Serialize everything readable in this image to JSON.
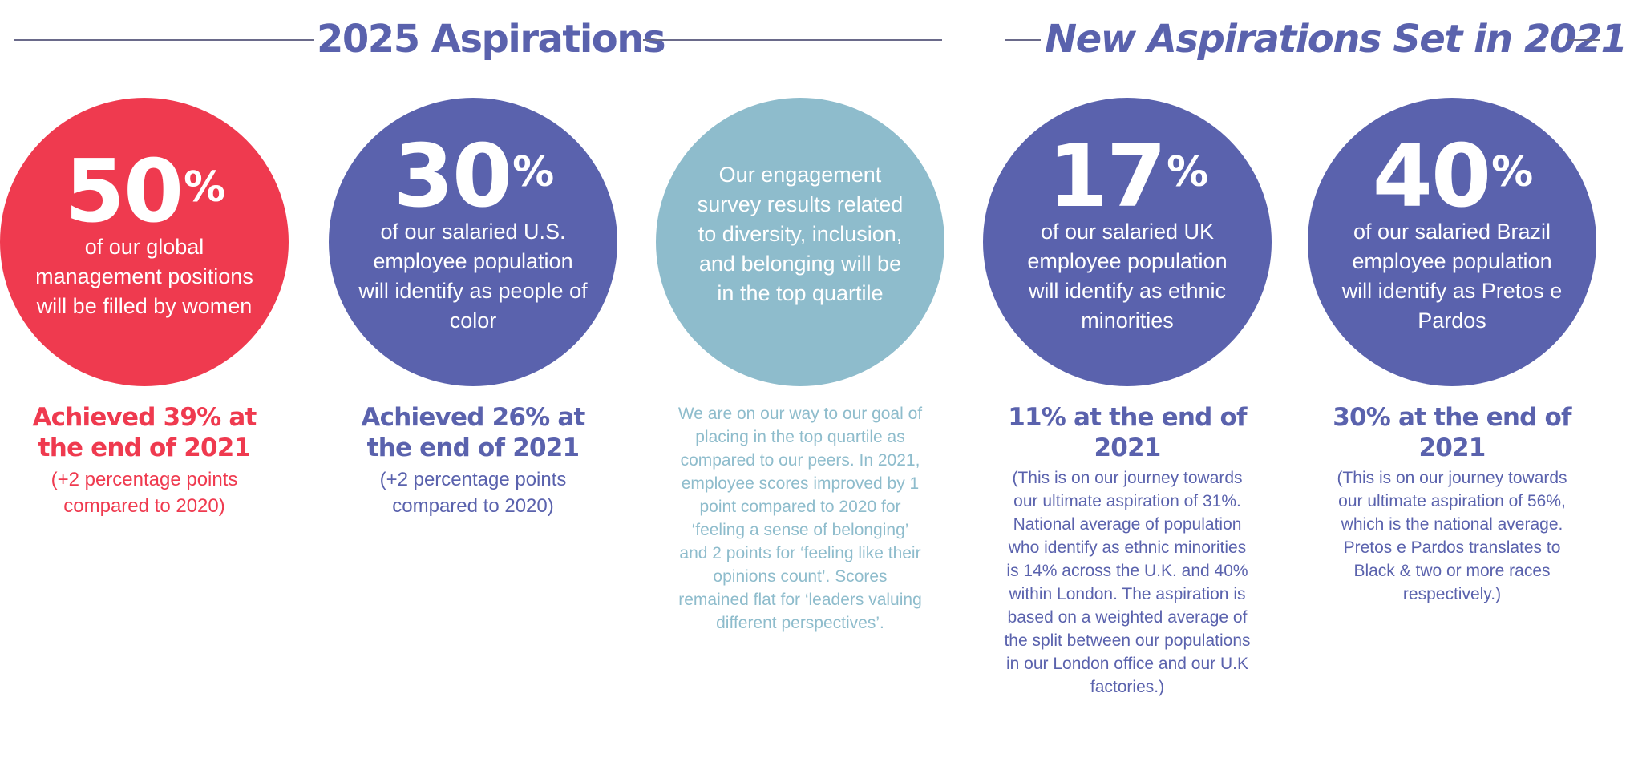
{
  "header": {
    "left_title": "2025 Aspirations",
    "right_title": "New Aspirations Set in 2021"
  },
  "colors": {
    "red": "#ef3a4f",
    "blue": "#5a62ad",
    "light_blue": "#8ebccc"
  },
  "cards": [
    {
      "stat": "50",
      "unit": "%",
      "circle_text": "of our global management positions will be filled by women",
      "achieved": "Achieved 39% at the end of 2021",
      "note": "(+2 percentage points compared to 2020)"
    },
    {
      "stat": "30",
      "unit": "%",
      "circle_text": "of our salaried U.S. employee population will identify as people of color",
      "achieved": "Achieved 26% at the end of 2021",
      "note": "(+2 percentage points compared to 2020)"
    },
    {
      "circle_text": "Our engagement survey results related to diversity, inclusion, and belonging will be in the top quartile",
      "note": "We are on our way to our goal of placing in the top quartile as compared to our peers. In 2021, employee scores improved by 1 point compared to 2020 for ‘feeling a sense of belonging’ and 2 points for ‘feeling like their opinions count’.  Scores remained flat for ‘leaders valuing different perspectives’."
    },
    {
      "stat": "17",
      "unit": "%",
      "circle_text": "of our salaried UK employee population will identify as ethnic minorities",
      "achieved": "11% at the end of 2021",
      "note": "(This is on our journey towards our ultimate aspiration of 31%. National average of population who identify as ethnic minorities is 14% across the U.K. and 40% within London. The aspiration is based on a weighted average of the split between our populations in our London office and our U.K factories.)"
    },
    {
      "stat": "40",
      "unit": "%",
      "circle_text": "of our salaried Brazil employee population will identify as Pretos e Pardos",
      "achieved": "30% at the end of 2021",
      "note": "(This is on our journey towards our ultimate aspiration of 56%, which is the national average. Pretos e Pardos translates to Black & two or more races respectively.)"
    }
  ]
}
